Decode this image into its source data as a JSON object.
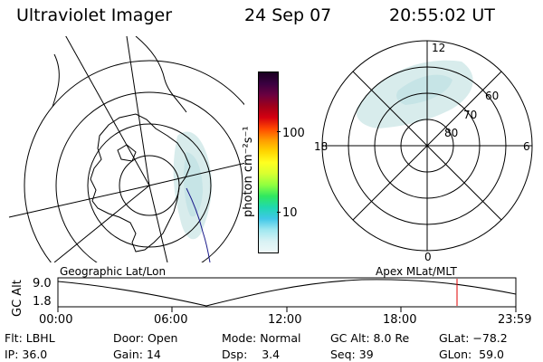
{
  "header": {
    "instrument": "Ultraviolet Imager",
    "date": "24 Sep 07",
    "time": "20:55:02 UT"
  },
  "colorbar": {
    "unit_label": "photon cm⁻²s⁻¹",
    "tick_100": "100",
    "tick_10": "10",
    "colors_top_to_bottom": [
      "#1a0020",
      "#3a0040",
      "#6a0040",
      "#a0001a",
      "#d40010",
      "#ff4800",
      "#ff9a00",
      "#ffd400",
      "#ffff20",
      "#d8ff30",
      "#90ff40",
      "#30e860",
      "#20d8b0",
      "#40c8e8",
      "#a0e8f0",
      "#d8f2f4",
      "#eef8f8"
    ]
  },
  "geo_map": {
    "label": "Geographic Lat/Lon"
  },
  "polar_plot": {
    "label": "Apex MLat/MLT",
    "mlt_labels": {
      "top": "12",
      "right": "6",
      "bottom": "0",
      "left": "18"
    },
    "lat_labels": [
      "60",
      "70",
      "80"
    ]
  },
  "timeline": {
    "ylabel": "GC Alt",
    "ytick_top": "9.0",
    "ytick_bottom": "1.8",
    "x_ticks": [
      "00:00",
      "06:00",
      "12:00",
      "18:00",
      "23:59"
    ],
    "marker_color": "#e00000"
  },
  "info": {
    "filter_label": "Flt:",
    "filter_value": "LBHL",
    "door_label": "Door:",
    "door_value": "Open",
    "mode_label": "Mode:",
    "mode_value": "Normal",
    "gc_alt_label": "GC Alt:",
    "gc_alt_value": "8.0 Re",
    "glat_label": "GLat:",
    "glat_value": "−78.2",
    "ip_label": "IP:",
    "ip_value": "36.0",
    "gain_label": "Gain:",
    "gain_value": "14",
    "dsp_label": "Dsp:",
    "dsp_value": "3.4",
    "seq_label": "Seq:",
    "seq_value": "39",
    "glon_label": "GLon:",
    "glon_value": "59.0"
  }
}
